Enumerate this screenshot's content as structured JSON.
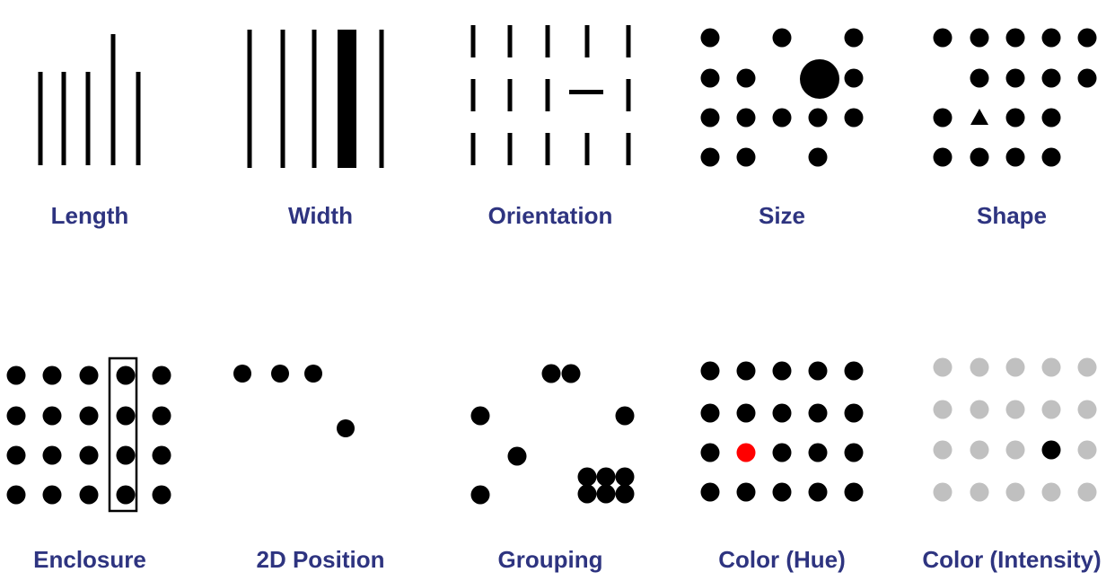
{
  "label_color": "#2e3480",
  "mark_color": "#000000",
  "accent_red": "#ff0000",
  "light_gray": "#c0c0c0",
  "panels": [
    {
      "id": "length",
      "label": "Length"
    },
    {
      "id": "width",
      "label": "Width"
    },
    {
      "id": "orientation",
      "label": "Orientation"
    },
    {
      "id": "size",
      "label": "Size"
    },
    {
      "id": "shape",
      "label": "Shape"
    },
    {
      "id": "enclosure",
      "label": "Enclosure"
    },
    {
      "id": "position",
      "label": "2D Position"
    },
    {
      "id": "grouping",
      "label": "Grouping"
    },
    {
      "id": "hue",
      "label": "Color (Hue)"
    },
    {
      "id": "intensity",
      "label": "Color (Intensity)"
    }
  ]
}
